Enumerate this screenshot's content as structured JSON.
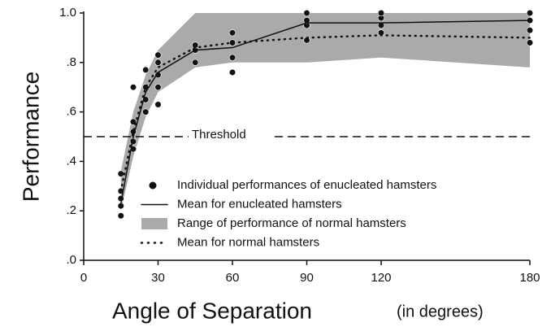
{
  "chart_data": {
    "type": "line",
    "ylabel": "Performance",
    "xlabel": "Angle of Separation",
    "xlabel_note": "(in degrees)",
    "xlim": [
      0,
      180
    ],
    "xticks": [
      0,
      30,
      60,
      90,
      120,
      180
    ],
    "ylim": [
      0,
      1.0
    ],
    "yticks": [
      {
        "value": 0,
        "label": ".0"
      },
      {
        "value": 0.2,
        "label": ".2"
      },
      {
        "value": 0.4,
        "label": ".4"
      },
      {
        "value": 0.6,
        "label": ".6"
      },
      {
        "value": 0.8,
        "label": ".8"
      },
      {
        "value": 1.0,
        "label": "1.0"
      }
    ],
    "threshold": {
      "value": 0.5,
      "label": "Threshold"
    },
    "series": [
      {
        "name": "Individual performances of enucleated hamsters",
        "type": "scatter",
        "color": "#111111",
        "x": [
          15,
          15,
          15,
          15,
          15,
          20,
          20,
          20,
          20,
          20,
          25,
          25,
          25,
          25,
          30,
          30,
          30,
          30,
          30,
          45,
          45,
          45,
          60,
          60,
          60,
          60,
          90,
          90,
          90,
          90,
          120,
          120,
          120,
          120,
          180,
          180,
          180,
          180
        ],
        "values": [
          0.18,
          0.22,
          0.25,
          0.28,
          0.35,
          0.45,
          0.48,
          0.52,
          0.56,
          0.7,
          0.6,
          0.65,
          0.7,
          0.77,
          0.63,
          0.7,
          0.75,
          0.8,
          0.83,
          0.8,
          0.85,
          0.87,
          0.76,
          0.82,
          0.88,
          0.92,
          0.89,
          0.95,
          0.97,
          1.0,
          0.92,
          0.95,
          0.98,
          1.0,
          0.88,
          0.93,
          0.97,
          1.0
        ]
      },
      {
        "name": "Mean for enucleated hamsters",
        "type": "line",
        "style": "solid",
        "color": "#111111",
        "x": [
          15,
          20,
          25,
          30,
          45,
          60,
          90,
          120,
          180
        ],
        "values": [
          0.23,
          0.5,
          0.68,
          0.76,
          0.85,
          0.86,
          0.96,
          0.96,
          0.97
        ]
      },
      {
        "name": "Range of performance of normal hamsters",
        "type": "area",
        "color": "#aaaaaa",
        "x": [
          15,
          20,
          25,
          30,
          45,
          60,
          90,
          120,
          180
        ],
        "upper": [
          0.36,
          0.6,
          0.75,
          0.85,
          1.0,
          1.0,
          1.0,
          1.0,
          1.0
        ],
        "lower": [
          0.2,
          0.42,
          0.58,
          0.68,
          0.78,
          0.8,
          0.8,
          0.82,
          0.78
        ]
      },
      {
        "name": "Mean for normal hamsters",
        "type": "line",
        "style": "dotted",
        "color": "#111111",
        "x": [
          15,
          20,
          25,
          30,
          45,
          60,
          90,
          120,
          180
        ],
        "values": [
          0.28,
          0.52,
          0.7,
          0.78,
          0.86,
          0.88,
          0.9,
          0.91,
          0.9
        ]
      }
    ]
  }
}
